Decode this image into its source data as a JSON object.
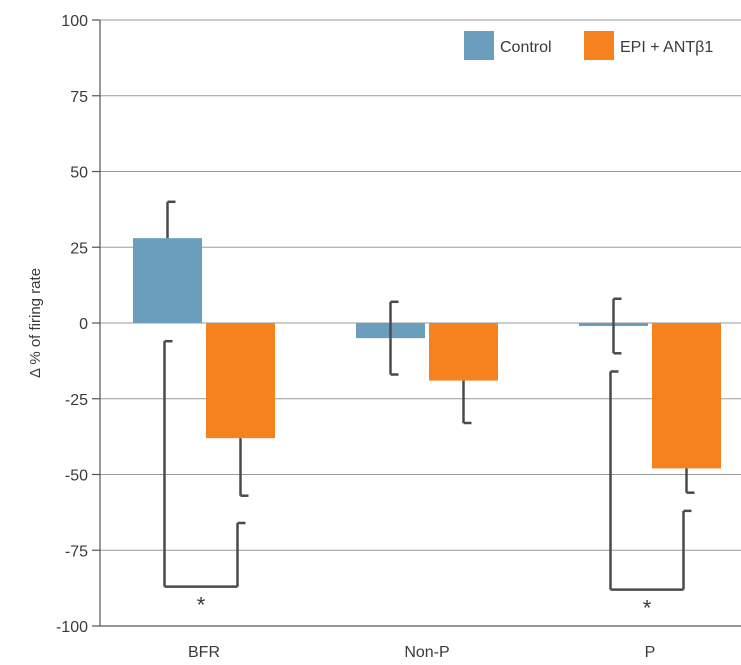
{
  "chart_data": {
    "type": "bar",
    "title": "",
    "xlabel": "",
    "ylabel": "Δ % of firing rate",
    "ylim": [
      -100,
      100
    ],
    "yticks": [
      100,
      75,
      50,
      25,
      0,
      -25,
      -50,
      -75,
      -100
    ],
    "grid": true,
    "legend_position": "top-right",
    "categories": [
      "BFR",
      "Non-P",
      "P"
    ],
    "series": [
      {
        "name": "Control",
        "color": "#6b9ebc",
        "values": [
          28,
          -5,
          -1
        ],
        "error": [
          12,
          12,
          9
        ]
      },
      {
        "name": "EPI + ANTβ1",
        "color": "#f5821f",
        "values": [
          -38,
          -19,
          -48
        ],
        "error": [
          19,
          14,
          8
        ]
      }
    ],
    "significance": [
      {
        "category": "BFR",
        "label": "*",
        "control_error_low": -6,
        "treatment_error_low": -66,
        "bracket_y": -87
      },
      {
        "category": "P",
        "label": "*",
        "control_error_low": -16,
        "treatment_error_low": -62,
        "bracket_y": -88
      }
    ]
  }
}
